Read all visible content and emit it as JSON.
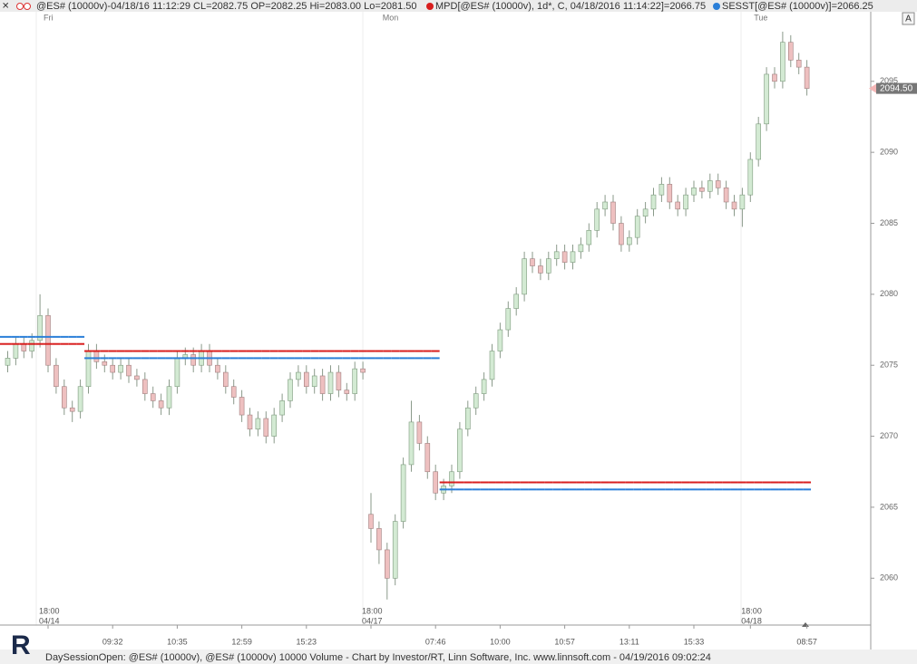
{
  "header": {
    "symbol_info": "@ES# (10000v)-04/18/16 11:12:29 CL=2082.75 OP=2082.25 Hi=2083.00 Lo=2081.50",
    "mpd_info": "MPD[@ES# (10000v), 1d*, C, 04/18/2016 11:14:22]=2066.75",
    "sesst_info": "SESST[@ES# (10000v)]=2066.25",
    "button": "A"
  },
  "footer": {
    "text": "DaySessionOpen: @ES# (10000v), @ES# (10000v) 10000 Volume - Chart by Investor/RT, Linn Software, Inc. www.linnsoft.com - 04/19/2016 09:02:24",
    "logo": "R"
  },
  "chart_data": {
    "type": "candlestick",
    "categories": [
      null,
      null,
      null,
      null,
      null,
      "18:00",
      null,
      null,
      null,
      null,
      null,
      null,
      null,
      "09:32",
      null,
      null,
      null,
      null,
      null,
      null,
      null,
      "10:35",
      null,
      null,
      null,
      null,
      null,
      null,
      null,
      "12:59",
      null,
      null,
      null,
      null,
      null,
      null,
      null,
      "15:23",
      null,
      null,
      null,
      null,
      null,
      null,
      null,
      "18:00",
      null,
      null,
      null,
      null,
      null,
      null,
      null,
      "07:46",
      null,
      null,
      null,
      null,
      null,
      null,
      null,
      "10:00",
      null,
      null,
      null,
      null,
      null,
      null,
      null,
      "10:57",
      null,
      null,
      null,
      null,
      null,
      null,
      null,
      "13:11",
      null,
      null,
      null,
      null,
      null,
      null,
      null,
      "15:33",
      null,
      null,
      null,
      null,
      null,
      null,
      "18:00",
      null,
      null,
      null,
      null,
      null,
      null,
      "08:57"
    ],
    "dates": [
      null,
      null,
      null,
      null,
      null,
      "04/14",
      null,
      null,
      null,
      null,
      null,
      null,
      null,
      null,
      null,
      null,
      null,
      null,
      null,
      null,
      null,
      null,
      null,
      null,
      null,
      null,
      null,
      null,
      null,
      null,
      null,
      null,
      null,
      null,
      null,
      null,
      null,
      null,
      null,
      null,
      null,
      null,
      null,
      null,
      null,
      "04/17",
      null,
      null,
      null,
      null,
      null,
      null,
      null,
      null,
      null,
      null,
      null,
      null,
      null,
      null,
      null,
      null,
      null,
      null,
      null,
      null,
      null,
      null,
      null,
      null,
      null,
      null,
      null,
      null,
      null,
      null,
      null,
      null,
      null,
      null,
      null,
      null,
      null,
      null,
      null,
      null,
      null,
      null,
      null,
      null,
      null,
      null,
      "04/18",
      null,
      null,
      null,
      null,
      null,
      null,
      null
    ],
    "days": [
      null,
      null,
      null,
      null,
      null,
      "Fri",
      null,
      null,
      null,
      null,
      null,
      null,
      null,
      null,
      null,
      null,
      null,
      null,
      null,
      null,
      null,
      null,
      null,
      null,
      null,
      null,
      null,
      null,
      null,
      null,
      null,
      null,
      null,
      null,
      null,
      null,
      null,
      null,
      null,
      null,
      null,
      null,
      null,
      null,
      null,
      null,
      null,
      "Mon",
      null,
      null,
      null,
      null,
      null,
      null,
      null,
      null,
      null,
      null,
      null,
      null,
      null,
      null,
      null,
      null,
      null,
      null,
      null,
      null,
      null,
      null,
      null,
      null,
      null,
      null,
      null,
      null,
      null,
      null,
      null,
      null,
      null,
      null,
      null,
      null,
      null,
      null,
      null,
      null,
      null,
      null,
      null,
      null,
      null,
      "Tue",
      null,
      null,
      null,
      null,
      null,
      null
    ],
    "open": [
      2075,
      2075.5,
      2076.5,
      2076,
      2076.75,
      2078.5,
      2075,
      2073.5,
      2072,
      2071.75,
      2073.5,
      2076,
      2075.25,
      2075,
      2074.5,
      2075,
      2074.25,
      2074,
      2073,
      2072.5,
      2072,
      2073.5,
      2075.5,
      2075.75,
      2075,
      2076,
      2075,
      2074.5,
      2073.5,
      2072.75,
      2071.5,
      2070.5,
      2071.25,
      2070,
      2071.5,
      2072.5,
      2074,
      2074.5,
      2073.5,
      2074.25,
      2073,
      2074.5,
      2073.25,
      2073,
      2074.75,
      2064.5,
      2063.5,
      2062,
      2060,
      2064,
      2068,
      2071,
      2069.5,
      2067.5,
      2066,
      2066.5,
      2067.5,
      2070.5,
      2072,
      2073,
      2074,
      2076,
      2077.5,
      2079,
      2080,
      2082.5,
      2082,
      2081.5,
      2082.5,
      2083,
      2082.25,
      2083,
      2083.5,
      2084.5,
      2086,
      2086.5,
      2085,
      2083.5,
      2084,
      2085.5,
      2086,
      2087,
      2087.75,
      2086.5,
      2086,
      2087,
      2087.5,
      2087.25,
      2088,
      2087.5,
      2086.5,
      2086,
      2087,
      2089.5,
      2092,
      2095.5,
      2095,
      2097.75,
      2096.5,
      2096
    ],
    "high": [
      2076,
      2077,
      2077,
      2077.25,
      2080,
      2079,
      2075.5,
      2074,
      2072.5,
      2074,
      2076.5,
      2076.5,
      2075.75,
      2075.5,
      2075.5,
      2075.5,
      2074.75,
      2074.5,
      2073.5,
      2073,
      2074,
      2076,
      2076.25,
      2076.25,
      2076.5,
      2076.5,
      2075.5,
      2075,
      2074,
      2073.25,
      2072,
      2071.75,
      2071.75,
      2072,
      2073,
      2074.5,
      2075,
      2075,
      2074.75,
      2074.75,
      2075,
      2075,
      2073.75,
      2075.25,
      2075.25,
      2066,
      2064,
      2062.5,
      2064.5,
      2068.5,
      2072.5,
      2071.5,
      2070,
      2068,
      2067,
      2068,
      2071,
      2072.5,
      2073.5,
      2074.5,
      2076.5,
      2078,
      2079.5,
      2080.5,
      2083,
      2083,
      2082.5,
      2083,
      2083.5,
      2083.5,
      2083.5,
      2084,
      2085,
      2086.5,
      2087,
      2087,
      2085.5,
      2084.5,
      2086,
      2086.5,
      2087.5,
      2088.25,
      2088.25,
      2087,
      2087.5,
      2088,
      2088,
      2088.5,
      2088.5,
      2088,
      2087,
      2087.5,
      2090,
      2092.5,
      2096,
      2096,
      2098.5,
      2098.25,
      2097,
      2096.5
    ],
    "low": [
      2074.5,
      2075,
      2075.5,
      2075.5,
      2076.25,
      2074.5,
      2073,
      2071.5,
      2071,
      2071.25,
      2073,
      2074.75,
      2074.5,
      2074,
      2074,
      2073.75,
      2073.5,
      2072.5,
      2072,
      2071.5,
      2071.5,
      2073,
      2075,
      2074.5,
      2074.5,
      2074.5,
      2074,
      2073,
      2072.25,
      2071,
      2070,
      2070,
      2069.5,
      2069.5,
      2071,
      2072,
      2073.5,
      2073,
      2073,
      2072.5,
      2072.5,
      2072.75,
      2072.5,
      2072.5,
      2074,
      2062.5,
      2061,
      2058.5,
      2059.5,
      2063.5,
      2067.5,
      2069,
      2067,
      2065.5,
      2065.5,
      2066,
      2067,
      2070,
      2071.5,
      2072.5,
      2073.5,
      2075.5,
      2077,
      2078.5,
      2079.5,
      2081.5,
      2081,
      2081,
      2082,
      2081.75,
      2081.75,
      2082.5,
      2083,
      2084,
      2085.5,
      2084.5,
      2083,
      2083,
      2083.5,
      2085,
      2085.5,
      2086.5,
      2086,
      2085.5,
      2085.5,
      2086.5,
      2086.75,
      2086.75,
      2087,
      2086,
      2085.5,
      2084.75,
      2086.5,
      2089,
      2091.5,
      2094.5,
      2094.5,
      2096,
      2095.5,
      2094
    ],
    "close": [
      2075.5,
      2076.5,
      2076,
      2076.75,
      2078.5,
      2075,
      2073.5,
      2072,
      2071.75,
      2073.5,
      2076,
      2075.25,
      2075,
      2074.5,
      2075,
      2074.25,
      2074,
      2073,
      2072.5,
      2072,
      2073.5,
      2075.5,
      2075.75,
      2075,
      2076,
      2075,
      2074.5,
      2073.5,
      2072.75,
      2071.5,
      2070.5,
      2071.25,
      2070,
      2071.5,
      2072.5,
      2074,
      2074.5,
      2073.5,
      2074.25,
      2073,
      2074.5,
      2073.25,
      2073,
      2074.75,
      2074.5,
      2063.5,
      2062,
      2060,
      2064,
      2068,
      2071,
      2069.5,
      2067.5,
      2066,
      2066.5,
      2067.5,
      2070.5,
      2072,
      2073,
      2074,
      2076,
      2077.5,
      2079,
      2080,
      2082.5,
      2082,
      2081.5,
      2082.5,
      2083,
      2082.25,
      2083,
      2083.5,
      2084.5,
      2086,
      2086.5,
      2085,
      2083.5,
      2084,
      2085.5,
      2086,
      2087,
      2087.75,
      2086.5,
      2086,
      2087,
      2087.5,
      2087.25,
      2088,
      2087.5,
      2086.5,
      2086,
      2087,
      2089.5,
      2092,
      2095.5,
      2095,
      2097.75,
      2096.5,
      2096,
      2094.5
    ],
    "up_color": "#d3ead3",
    "down_color": "#eec0c0",
    "series": [
      {
        "name": "MPD",
        "color": "#d81e1e",
        "values": [
          2076.5,
          2076.5,
          2076.5,
          2076.5,
          2076.5,
          2076.5,
          2076.5,
          2076.5,
          2076.5,
          2076.5,
          2076,
          2076,
          2076,
          2076,
          2076,
          2076,
          2076,
          2076,
          2076,
          2076,
          2076,
          2076,
          2076,
          2076,
          2076,
          2076,
          2076,
          2076,
          2076,
          2076,
          2076,
          2076,
          2076,
          2076,
          2076,
          2076,
          2076,
          2076,
          2076,
          2076,
          2076,
          2076,
          2076,
          2076,
          2076,
          2076,
          2076,
          2076,
          2076,
          2076,
          2076,
          2076,
          2076,
          2076,
          2066.75,
          2066.75,
          2066.75,
          2066.75,
          2066.75,
          2066.75,
          2066.75,
          2066.75,
          2066.75,
          2066.75,
          2066.75,
          2066.75,
          2066.75,
          2066.75,
          2066.75,
          2066.75,
          2066.75,
          2066.75,
          2066.75,
          2066.75,
          2066.75,
          2066.75,
          2066.75,
          2066.75,
          2066.75,
          2066.75,
          2066.75,
          2066.75,
          2066.75,
          2066.75,
          2066.75,
          2066.75,
          2066.75,
          2066.75,
          2066.75,
          2066.75,
          2066.75,
          2066.75,
          2066.75,
          2066.75,
          2066.75,
          2066.75,
          2066.75,
          2066.75,
          2066.75,
          2066.75
        ]
      },
      {
        "name": "SESST",
        "color": "#2a7fd8",
        "values": [
          2077,
          2077,
          2077,
          2077,
          2077,
          2077,
          2077,
          2077,
          2077,
          2077,
          2075.5,
          2075.5,
          2075.5,
          2075.5,
          2075.5,
          2075.5,
          2075.5,
          2075.5,
          2075.5,
          2075.5,
          2075.5,
          2075.5,
          2075.5,
          2075.5,
          2075.5,
          2075.5,
          2075.5,
          2075.5,
          2075.5,
          2075.5,
          2075.5,
          2075.5,
          2075.5,
          2075.5,
          2075.5,
          2075.5,
          2075.5,
          2075.5,
          2075.5,
          2075.5,
          2075.5,
          2075.5,
          2075.5,
          2075.5,
          2075.5,
          2075.5,
          2075.5,
          2075.5,
          2075.5,
          2075.5,
          2075.5,
          2075.5,
          2075.5,
          2075.5,
          2066.25,
          2066.25,
          2066.25,
          2066.25,
          2066.25,
          2066.25,
          2066.25,
          2066.25,
          2066.25,
          2066.25,
          2066.25,
          2066.25,
          2066.25,
          2066.25,
          2066.25,
          2066.25,
          2066.25,
          2066.25,
          2066.25,
          2066.25,
          2066.25,
          2066.25,
          2066.25,
          2066.25,
          2066.25,
          2066.25,
          2066.25,
          2066.25,
          2066.25,
          2066.25,
          2066.25,
          2066.25,
          2066.25,
          2066.25,
          2066.25,
          2066.25,
          2066.25,
          2066.25,
          2066.25,
          2066.25,
          2066.25,
          2066.25,
          2066.25,
          2066.25,
          2066.25,
          2066.25
        ]
      }
    ],
    "last_price": {
      "value": 2094.5,
      "label": "2094.50"
    },
    "ylim": [
      2056.7,
      2099.9
    ],
    "yticks": [
      2060,
      2065,
      2070,
      2075,
      2080,
      2085,
      2090,
      2095
    ]
  }
}
